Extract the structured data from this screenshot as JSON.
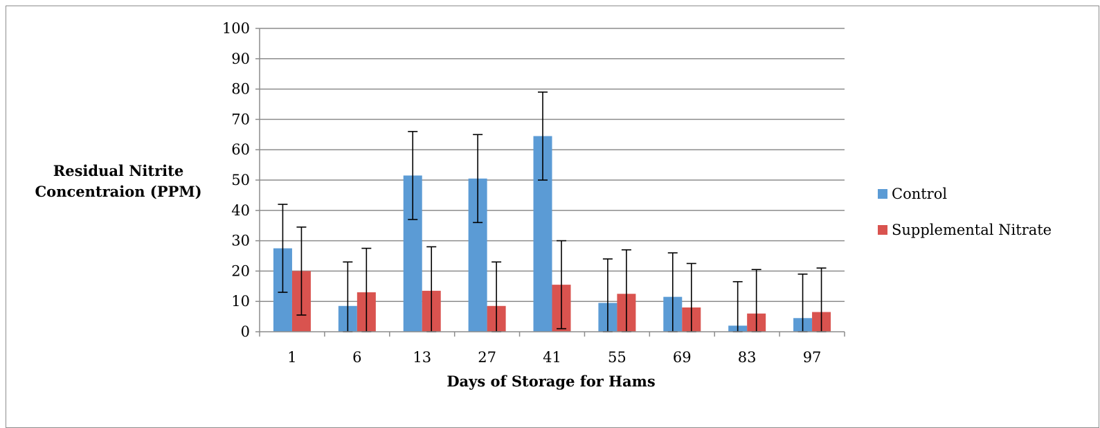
{
  "chart_data": {
    "type": "bar",
    "xlabel": "Days of Storage for Hams",
    "ylabel": "Residual Nitrite Concentraion (PPM)",
    "ylim": [
      0,
      100
    ],
    "yticks": [
      0,
      10,
      20,
      30,
      40,
      50,
      60,
      70,
      80,
      90,
      100
    ],
    "grid": true,
    "legend_position": "right",
    "categories": [
      "1",
      "6",
      "13",
      "27",
      "41",
      "55",
      "69",
      "83",
      "97"
    ],
    "series": [
      {
        "name": "Control",
        "color": "#5b9bd5",
        "values": [
          27.5,
          8.5,
          51.5,
          50.5,
          64.5,
          9.5,
          11.5,
          2,
          4.5
        ],
        "error_low": [
          13,
          0,
          37,
          36,
          50,
          0,
          0,
          0,
          0
        ],
        "error_high": [
          42,
          23,
          66,
          65,
          79,
          24,
          26,
          16.5,
          19
        ]
      },
      {
        "name": "Supplemental Nitrate",
        "color": "#d9534f",
        "values": [
          20,
          13,
          13.5,
          8.5,
          15.5,
          12.5,
          8,
          6,
          6.5
        ],
        "error_low": [
          5.5,
          0,
          0,
          0,
          1,
          0,
          0,
          0,
          0
        ],
        "error_high": [
          34.5,
          27.5,
          28,
          23,
          30,
          27,
          22.5,
          20.5,
          21
        ]
      }
    ]
  }
}
